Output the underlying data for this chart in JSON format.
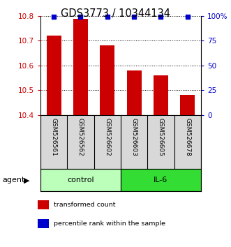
{
  "title": "GDS3773 / 10344134",
  "categories": [
    "GSM526561",
    "GSM526562",
    "GSM526602",
    "GSM526603",
    "GSM526605",
    "GSM526678"
  ],
  "bar_values": [
    10.72,
    10.79,
    10.68,
    10.58,
    10.56,
    10.48
  ],
  "percentile_values": [
    99,
    99,
    99,
    99,
    99,
    99
  ],
  "bar_color": "#cc0000",
  "dot_color": "#0000cc",
  "ylim_left": [
    10.4,
    10.8
  ],
  "ylim_right": [
    0,
    100
  ],
  "yticks_left": [
    10.4,
    10.5,
    10.6,
    10.7,
    10.8
  ],
  "yticks_right": [
    0,
    25,
    50,
    75,
    100
  ],
  "ytick_labels_right": [
    "0",
    "25",
    "50",
    "75",
    "100%"
  ],
  "groups": [
    {
      "label": "control",
      "indices": [
        0,
        1,
        2
      ],
      "color": "#bbffbb"
    },
    {
      "label": "IL-6",
      "indices": [
        3,
        4,
        5
      ],
      "color": "#33dd33"
    }
  ],
  "agent_label": "agent",
  "legend": [
    {
      "label": "transformed count",
      "color": "#cc0000"
    },
    {
      "label": "percentile rank within the sample",
      "color": "#0000cc"
    }
  ],
  "bar_width": 0.55,
  "baseline": 10.4,
  "fig_width": 3.31,
  "fig_height": 3.54,
  "dpi": 100
}
